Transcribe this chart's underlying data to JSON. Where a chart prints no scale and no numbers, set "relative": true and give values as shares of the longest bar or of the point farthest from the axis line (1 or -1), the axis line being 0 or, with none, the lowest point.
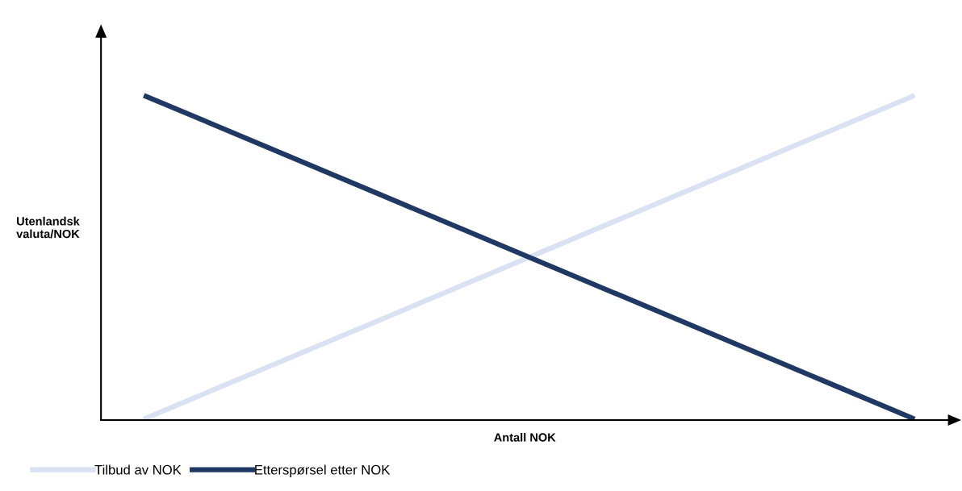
{
  "chart_data": {
    "type": "line",
    "relative": true,
    "xlabel": "Antall NOK",
    "ylabel": "Utenlandsk\nvaluta/NOK",
    "categories": [
      null,
      null
    ],
    "series": [
      {
        "name": "Tilbud av NOK",
        "color": "#d9e1f2",
        "values": [
          0.0,
          1.0
        ]
      },
      {
        "name": "Etterspørsel etter NOK",
        "color": "#203864",
        "values": [
          1.0,
          0.0
        ]
      }
    ],
    "legend": "bottom left",
    "grid": false,
    "line_style": "solid"
  }
}
